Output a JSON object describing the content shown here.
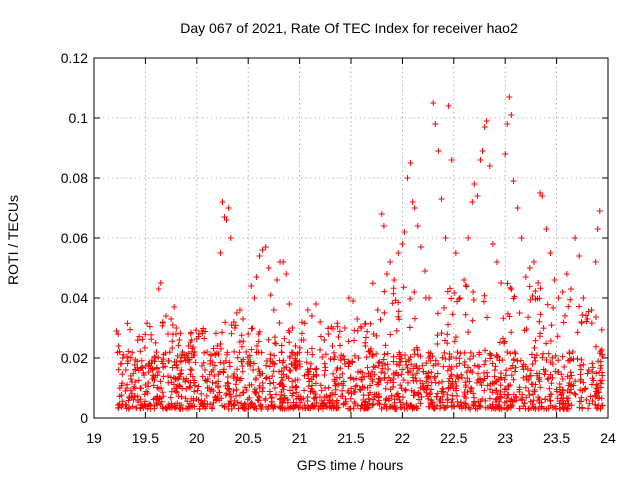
{
  "chart_data": {
    "type": "scatter",
    "title": "Day 067 of 2021, Rate Of TEC Index for receiver hao2",
    "xlabel": "GPS time / hours",
    "ylabel": "ROTI / TECUs",
    "xlim": [
      19,
      24
    ],
    "ylim": [
      0,
      0.12
    ],
    "x_ticks": [
      19,
      19.5,
      20,
      20.5,
      21,
      21.5,
      22,
      22.5,
      23,
      23.5,
      24
    ],
    "x_tick_labels": [
      "19",
      "19.5",
      "20",
      "20.5",
      "21",
      "21.5",
      "22",
      "22.5",
      "23",
      "23.5",
      "24"
    ],
    "y_ticks": [
      0,
      0.02,
      0.04,
      0.06,
      0.08,
      0.1,
      0.12
    ],
    "y_tick_labels": [
      "0",
      "0.02",
      "0.04",
      "0.06",
      "0.08",
      "0.1",
      "0.12"
    ],
    "grid": true,
    "marker": "+",
    "color": "#ff0000",
    "series": [
      {
        "x": [
          19.22,
          19.24,
          19.26,
          19.28,
          19.31,
          19.33,
          19.36,
          19.4,
          19.45,
          19.48,
          19.5,
          19.53,
          19.57,
          19.6,
          19.63,
          19.65,
          19.67,
          19.7,
          19.72,
          19.75,
          19.78,
          19.8,
          19.83,
          19.86,
          19.88,
          19.92,
          19.95,
          19.98,
          20.02,
          20.05,
          20.08,
          20.1,
          20.13,
          20.17,
          20.2,
          20.23,
          20.25,
          20.27,
          20.29,
          20.31,
          20.33,
          20.36,
          20.39,
          20.42,
          20.45,
          20.48,
          20.5,
          20.53,
          20.56,
          20.58,
          20.61,
          20.64,
          20.67,
          20.7,
          20.72,
          20.75,
          20.78,
          20.81,
          20.84,
          20.87,
          20.9,
          20.93,
          20.96,
          21.0,
          21.04,
          21.08,
          21.12,
          21.16,
          21.2,
          21.24,
          21.28,
          21.32,
          21.36,
          21.4,
          21.44,
          21.48,
          21.52,
          21.56,
          21.6,
          21.64,
          21.68,
          21.72,
          21.76,
          21.8,
          21.82,
          21.85,
          21.88,
          21.92,
          21.96,
          22.0,
          22.02,
          22.05,
          22.08,
          22.1,
          22.12,
          22.15,
          22.18,
          22.22,
          22.26,
          22.3,
          22.32,
          22.35,
          22.38,
          22.42,
          22.45,
          22.48,
          22.52,
          22.56,
          22.6,
          22.64,
          22.68,
          22.7,
          22.73,
          22.76,
          22.78,
          22.8,
          22.82,
          22.85,
          22.88,
          22.92,
          22.96,
          23.0,
          23.02,
          23.04,
          23.06,
          23.08,
          23.12,
          23.16,
          23.2,
          23.24,
          23.28,
          23.32,
          23.34,
          23.36,
          23.4,
          23.44,
          23.48,
          23.52,
          23.56,
          23.6,
          23.64,
          23.68,
          23.72,
          23.76,
          23.8,
          23.84,
          23.88,
          23.9,
          23.92
        ],
        "y": [
          0.029,
          0.024,
          0.018,
          0.02,
          0.016,
          0.019,
          0.013,
          0.012,
          0.01,
          0.015,
          0.011,
          0.018,
          0.013,
          0.02,
          0.043,
          0.045,
          0.032,
          0.034,
          0.028,
          0.033,
          0.037,
          0.03,
          0.026,
          0.022,
          0.02,
          0.024,
          0.026,
          0.021,
          0.028,
          0.029,
          0.016,
          0.022,
          0.018,
          0.014,
          0.024,
          0.055,
          0.072,
          0.067,
          0.066,
          0.07,
          0.06,
          0.032,
          0.035,
          0.036,
          0.033,
          0.022,
          0.028,
          0.044,
          0.04,
          0.047,
          0.054,
          0.056,
          0.057,
          0.05,
          0.041,
          0.036,
          0.046,
          0.052,
          0.052,
          0.048,
          0.038,
          0.03,
          0.024,
          0.018,
          0.026,
          0.036,
          0.034,
          0.038,
          0.032,
          0.026,
          0.028,
          0.024,
          0.016,
          0.02,
          0.03,
          0.04,
          0.039,
          0.033,
          0.03,
          0.024,
          0.022,
          0.028,
          0.036,
          0.068,
          0.064,
          0.048,
          0.052,
          0.046,
          0.055,
          0.058,
          0.062,
          0.08,
          0.085,
          0.072,
          0.07,
          0.064,
          0.057,
          0.049,
          0.04,
          0.105,
          0.098,
          0.089,
          0.073,
          0.06,
          0.104,
          0.086,
          0.055,
          0.04,
          0.046,
          0.06,
          0.072,
          0.078,
          0.074,
          0.086,
          0.089,
          0.097,
          0.099,
          0.084,
          0.058,
          0.052,
          0.045,
          0.088,
          0.098,
          0.107,
          0.101,
          0.079,
          0.07,
          0.06,
          0.047,
          0.05,
          0.052,
          0.045,
          0.075,
          0.074,
          0.063,
          0.055,
          0.046,
          0.04,
          0.042,
          0.048,
          0.043,
          0.06,
          0.054,
          0.04,
          0.033,
          0.036,
          0.052,
          0.063,
          0.069
        ]
      }
    ],
    "baseline_band": {
      "x_range": [
        19.22,
        23.95
      ],
      "y_range": [
        0.003,
        0.022
      ],
      "note_hidden": true
    }
  }
}
